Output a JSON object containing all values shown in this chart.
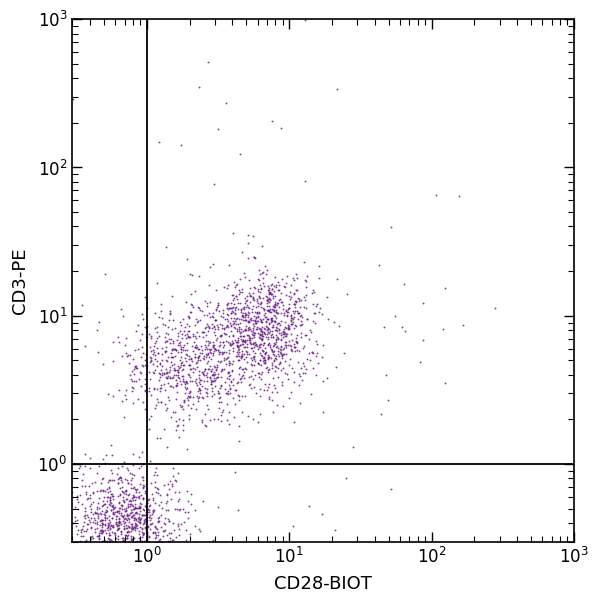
{
  "title": "",
  "xlabel": "CD28-BIOT",
  "ylabel": "CD3-PE",
  "dot_color": "#6B1F8A",
  "dot_alpha": 0.85,
  "dot_size": 1.8,
  "quadrant_x": 1.0,
  "quadrant_y": 1.0,
  "xlim": [
    0.3,
    1000
  ],
  "ylim": [
    0.3,
    1000
  ],
  "background_color": "#ffffff",
  "clusters": [
    {
      "name": "bottom_left_dense",
      "n": 900,
      "x_log_mean": -0.15,
      "x_log_std": 0.2,
      "y_log_mean": -0.4,
      "y_log_std": 0.18
    },
    {
      "name": "cd3pos_cd28neg",
      "n": 700,
      "x_log_mean": 0.3,
      "x_log_std": 0.25,
      "y_log_mean": 0.68,
      "y_log_std": 0.2
    },
    {
      "name": "cd3pos_cd28pos_main",
      "n": 900,
      "x_log_mean": 0.82,
      "x_log_std": 0.18,
      "y_log_mean": 0.92,
      "y_log_std": 0.2
    },
    {
      "name": "scattered_high",
      "n": 25,
      "x_log_mean": 0.6,
      "x_log_std": 0.7,
      "y_log_mean": 1.9,
      "y_log_std": 0.5
    },
    {
      "name": "right_sparse",
      "n": 20,
      "x_log_mean": 1.8,
      "x_log_std": 0.4,
      "y_log_mean": 0.9,
      "y_log_std": 0.3
    },
    {
      "name": "bottom_right_sparse",
      "n": 15,
      "x_log_mean": 1.2,
      "x_log_std": 0.5,
      "y_log_mean": -0.3,
      "y_log_std": 0.25
    }
  ]
}
